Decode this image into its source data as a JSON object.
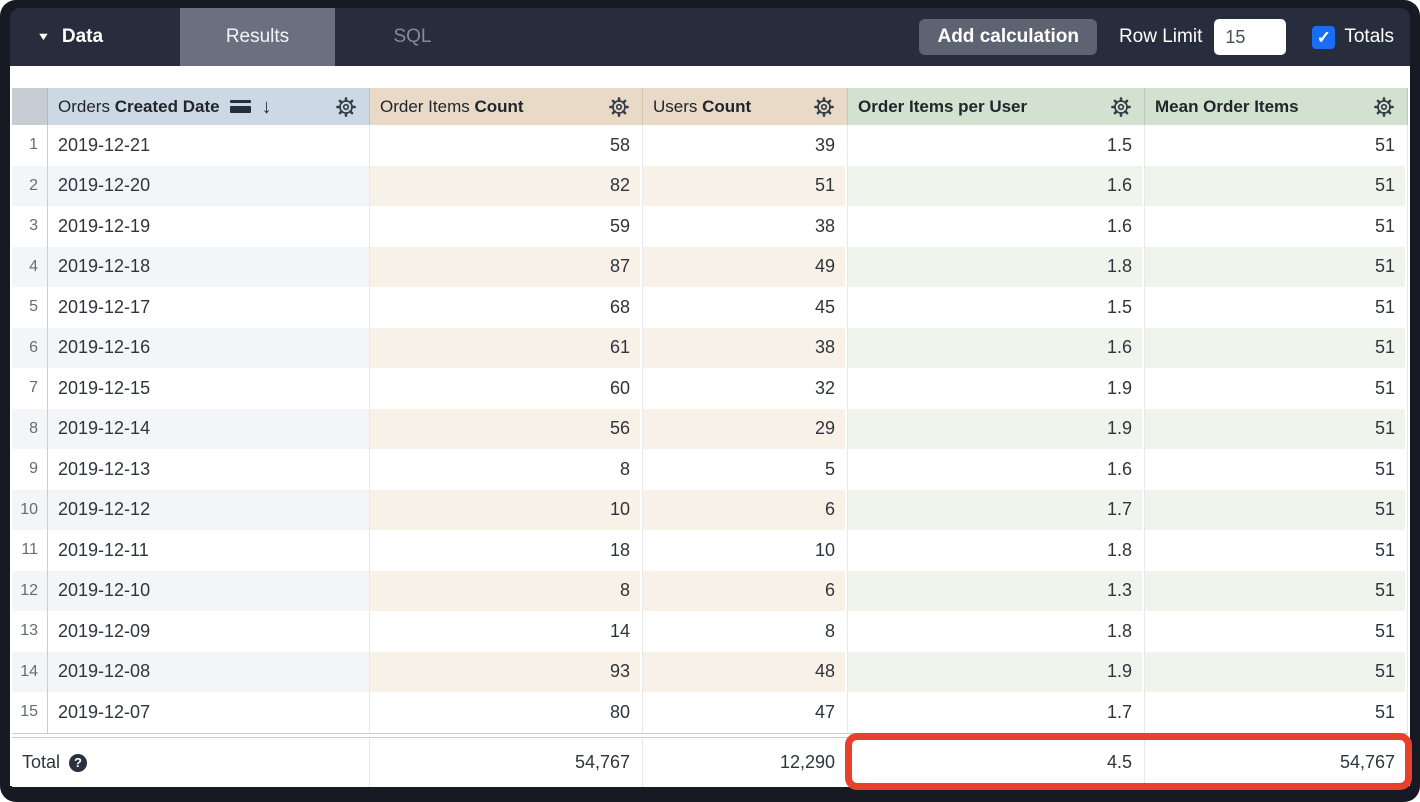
{
  "toolbar": {
    "tabs": [
      {
        "label": "Data",
        "active": true
      },
      {
        "label": "Results",
        "active": false
      },
      {
        "label": "SQL",
        "active": false
      }
    ],
    "add_calculation_label": "Add calculation",
    "row_limit_label": "Row Limit",
    "row_limit_value": "15",
    "totals_label": "Totals",
    "totals_checked": true
  },
  "table": {
    "columns": [
      {
        "id": "date",
        "view": "Orders",
        "field": "Created Date",
        "type": "dimension",
        "align": "left",
        "sort": "desc"
      },
      {
        "id": "order_items_count",
        "view": "Order Items",
        "field": "Count",
        "type": "measure",
        "align": "right"
      },
      {
        "id": "users_count",
        "view": "Users",
        "field": "Count",
        "type": "measure",
        "align": "right"
      },
      {
        "id": "order_items_per_user",
        "view": "",
        "field": "Order Items per User",
        "type": "calculation",
        "align": "right"
      },
      {
        "id": "mean_order_items",
        "view": "",
        "field": "Mean Order Items",
        "type": "calculation",
        "align": "right"
      }
    ],
    "rows": [
      {
        "num": "1",
        "date": "2019-12-21",
        "order_items_count": "58",
        "users_count": "39",
        "order_items_per_user": "1.5",
        "mean_order_items": "51"
      },
      {
        "num": "2",
        "date": "2019-12-20",
        "order_items_count": "82",
        "users_count": "51",
        "order_items_per_user": "1.6",
        "mean_order_items": "51"
      },
      {
        "num": "3",
        "date": "2019-12-19",
        "order_items_count": "59",
        "users_count": "38",
        "order_items_per_user": "1.6",
        "mean_order_items": "51"
      },
      {
        "num": "4",
        "date": "2019-12-18",
        "order_items_count": "87",
        "users_count": "49",
        "order_items_per_user": "1.8",
        "mean_order_items": "51"
      },
      {
        "num": "5",
        "date": "2019-12-17",
        "order_items_count": "68",
        "users_count": "45",
        "order_items_per_user": "1.5",
        "mean_order_items": "51"
      },
      {
        "num": "6",
        "date": "2019-12-16",
        "order_items_count": "61",
        "users_count": "38",
        "order_items_per_user": "1.6",
        "mean_order_items": "51"
      },
      {
        "num": "7",
        "date": "2019-12-15",
        "order_items_count": "60",
        "users_count": "32",
        "order_items_per_user": "1.9",
        "mean_order_items": "51"
      },
      {
        "num": "8",
        "date": "2019-12-14",
        "order_items_count": "56",
        "users_count": "29",
        "order_items_per_user": "1.9",
        "mean_order_items": "51"
      },
      {
        "num": "9",
        "date": "2019-12-13",
        "order_items_count": "8",
        "users_count": "5",
        "order_items_per_user": "1.6",
        "mean_order_items": "51"
      },
      {
        "num": "10",
        "date": "2019-12-12",
        "order_items_count": "10",
        "users_count": "6",
        "order_items_per_user": "1.7",
        "mean_order_items": "51"
      },
      {
        "num": "11",
        "date": "2019-12-11",
        "order_items_count": "18",
        "users_count": "10",
        "order_items_per_user": "1.8",
        "mean_order_items": "51"
      },
      {
        "num": "12",
        "date": "2019-12-10",
        "order_items_count": "8",
        "users_count": "6",
        "order_items_per_user": "1.3",
        "mean_order_items": "51"
      },
      {
        "num": "13",
        "date": "2019-12-09",
        "order_items_count": "14",
        "users_count": "8",
        "order_items_per_user": "1.8",
        "mean_order_items": "51"
      },
      {
        "num": "14",
        "date": "2019-12-08",
        "order_items_count": "93",
        "users_count": "48",
        "order_items_per_user": "1.9",
        "mean_order_items": "51"
      },
      {
        "num": "15",
        "date": "2019-12-07",
        "order_items_count": "80",
        "users_count": "47",
        "order_items_per_user": "1.7",
        "mean_order_items": "51"
      }
    ],
    "total": {
      "label": "Total",
      "order_items_count": "54,767",
      "users_count": "12,290",
      "order_items_per_user": "4.5",
      "mean_order_items": "54,767"
    },
    "highlight": {
      "target": "totals of Order Items per User and Mean Order Items",
      "color": "#e8402c"
    }
  },
  "colors": {
    "frame_bg": "#171a23",
    "topbar_bg": "#272d3c",
    "results_tab_bg": "#6a7080",
    "corner_header_bg": "#c6cdd4",
    "dimension_header_bg": "#ccd9e4",
    "measure_header_bg": "#e9d9c7",
    "calc_header_bg": "#d3e1d0",
    "dimension_alt_bg": "#f3f6f9",
    "measure_alt_bg": "#f8f1e8",
    "calc_alt_bg": "#eff5ed",
    "checkbox_blue": "#1a6ef5",
    "highlight_red": "#e8402c"
  }
}
